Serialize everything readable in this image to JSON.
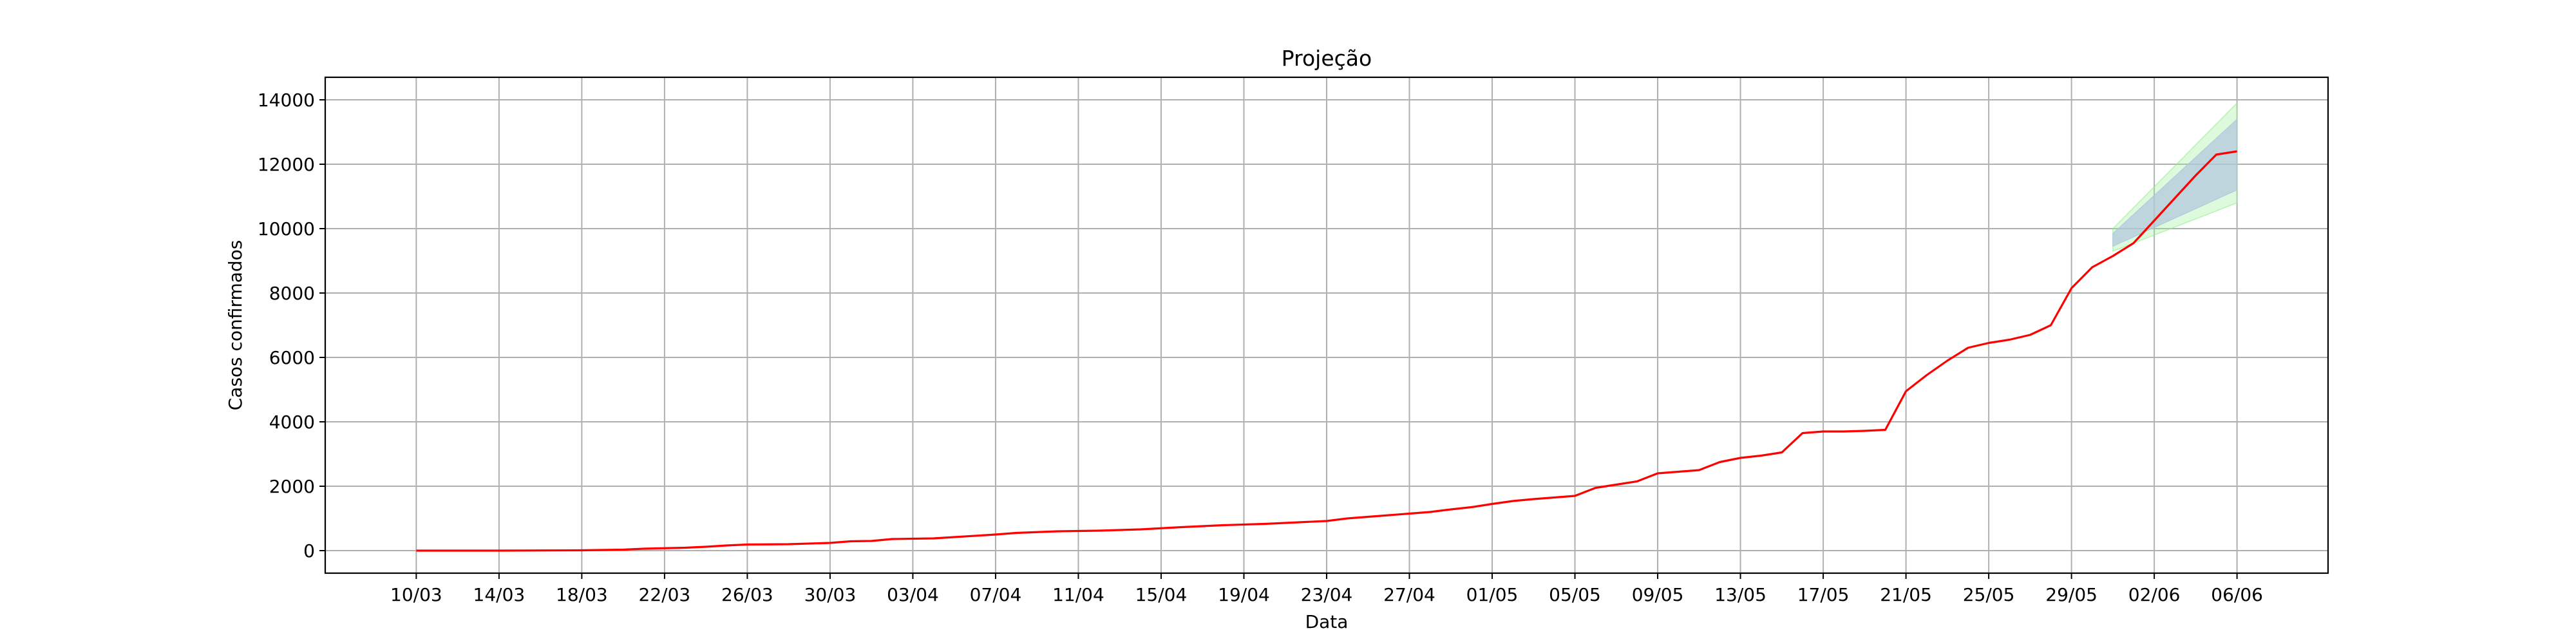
{
  "colors": {
    "line": "#ff0000",
    "band_inner": "#b0c4de",
    "band_outer": "#90ee90",
    "grid": "#b0b0b0",
    "axis": "#000000"
  },
  "chart_data": {
    "type": "line",
    "title": "Projeção",
    "xlabel": "Data",
    "ylabel": "Casos confirmados",
    "grid": true,
    "x_tick_labels": [
      "10/03",
      "14/03",
      "18/03",
      "22/03",
      "26/03",
      "30/03",
      "03/04",
      "07/04",
      "11/04",
      "15/04",
      "19/04",
      "23/04",
      "27/04",
      "01/05",
      "05/05",
      "09/05",
      "13/05",
      "17/05",
      "21/05",
      "25/05",
      "29/05",
      "02/06",
      "06/06"
    ],
    "x_tick_days": [
      0,
      4,
      8,
      12,
      16,
      20,
      24,
      28,
      32,
      36,
      40,
      44,
      48,
      52,
      56,
      60,
      64,
      68,
      72,
      76,
      80,
      84,
      88
    ],
    "xlim": [
      -4.4,
      92.4
    ],
    "yticks": [
      0,
      2000,
      4000,
      6000,
      8000,
      10000,
      12000,
      14000
    ],
    "ylim": [
      -700,
      14700
    ],
    "series": [
      {
        "values": [
          [
            0,
            0
          ],
          [
            4,
            0
          ],
          [
            8,
            10
          ],
          [
            10,
            30
          ],
          [
            11,
            60
          ],
          [
            13,
            90
          ],
          [
            14,
            120
          ],
          [
            15,
            160
          ],
          [
            16,
            190
          ],
          [
            18,
            200
          ],
          [
            20,
            240
          ],
          [
            21,
            290
          ],
          [
            22,
            300
          ],
          [
            23,
            360
          ],
          [
            25,
            380
          ],
          [
            26,
            420
          ],
          [
            28,
            500
          ],
          [
            29,
            550
          ],
          [
            31,
            600
          ],
          [
            33,
            620
          ],
          [
            35,
            660
          ],
          [
            37,
            730
          ],
          [
            39,
            790
          ],
          [
            41,
            830
          ],
          [
            42,
            860
          ],
          [
            44,
            920
          ],
          [
            45,
            1000
          ],
          [
            46,
            1050
          ],
          [
            48,
            1150
          ],
          [
            49,
            1200
          ],
          [
            50,
            1280
          ],
          [
            51,
            1350
          ],
          [
            52,
            1450
          ],
          [
            53,
            1540
          ],
          [
            54,
            1600
          ],
          [
            55,
            1650
          ],
          [
            56,
            1700
          ],
          [
            57,
            1950
          ],
          [
            58,
            2050
          ],
          [
            59,
            2150
          ],
          [
            60,
            2400
          ],
          [
            61,
            2450
          ],
          [
            62,
            2500
          ],
          [
            63,
            2750
          ],
          [
            64,
            2880
          ],
          [
            65,
            2950
          ],
          [
            66,
            3050
          ],
          [
            67,
            3650
          ],
          [
            68,
            3700
          ],
          [
            69,
            3700
          ],
          [
            70,
            3720
          ],
          [
            71,
            3750
          ],
          [
            72,
            4950
          ],
          [
            73,
            5450
          ],
          [
            74,
            5900
          ],
          [
            75,
            6300
          ],
          [
            76,
            6450
          ],
          [
            77,
            6550
          ],
          [
            78,
            6700
          ],
          [
            79,
            7000
          ],
          [
            80,
            8150
          ],
          [
            81,
            8800
          ],
          [
            82,
            9150
          ],
          [
            83,
            9550
          ],
          [
            84,
            10250
          ],
          [
            85,
            10950
          ],
          [
            86,
            11650
          ],
          [
            87,
            12300
          ],
          [
            88,
            12400
          ]
        ]
      }
    ],
    "projection": {
      "x": [
        82,
        88
      ],
      "outer_lower": [
        9300,
        10800
      ],
      "outer_upper": [
        10000,
        13900
      ],
      "inner_lower": [
        9450,
        11200
      ],
      "inner_upper": [
        9850,
        13400
      ]
    }
  }
}
